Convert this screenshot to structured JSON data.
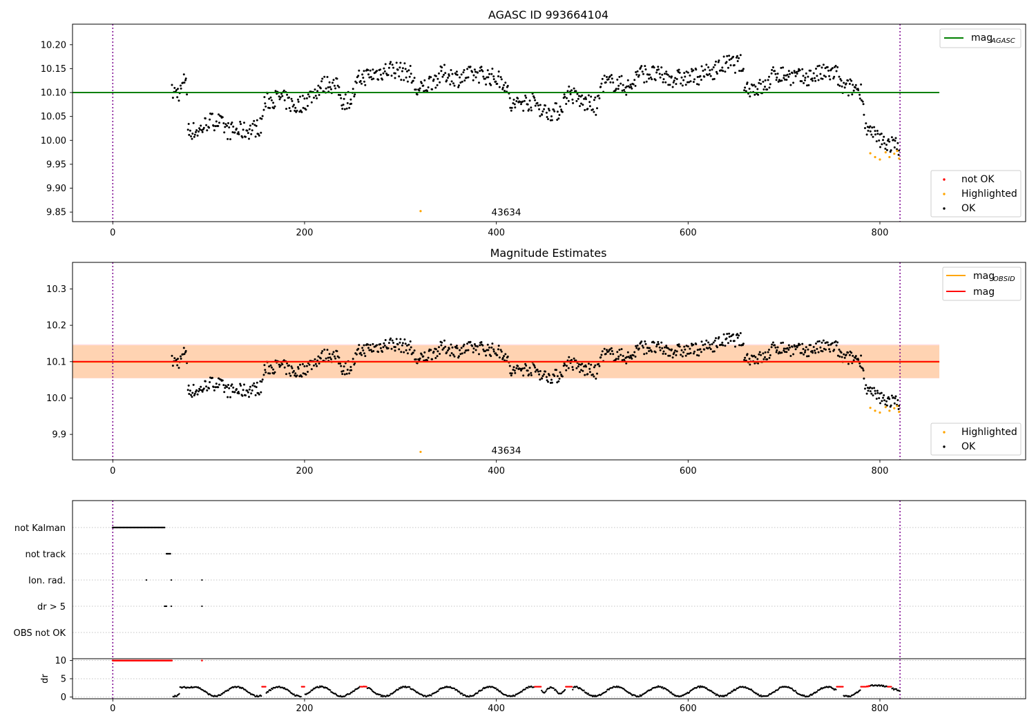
{
  "colors": {
    "ok": "#000000",
    "highlighted": "#ffa500",
    "not_ok": "#ff0000",
    "agasc_line": "#008000",
    "obsid_line": "#ffa500",
    "mag_line": "#ff0000",
    "obsid_band": "#ffa500",
    "mag_band": "#ff9aa8",
    "obs_vline": "#7b008f"
  },
  "chart_data": [
    {
      "type": "scatter",
      "title": "AGASC ID 993664104",
      "xlim": [
        -42,
        952
      ],
      "ylim": [
        9.83,
        10.243
      ],
      "xticks": [
        "0",
        "200",
        "400",
        "600",
        "800"
      ],
      "xtick_values": [
        0,
        200,
        400,
        600,
        800
      ],
      "yticks": [
        "9.85",
        "9.90",
        "9.95",
        "10.00",
        "10.05",
        "10.10",
        "10.15",
        "10.20"
      ],
      "ytick_values": [
        9.85,
        9.9,
        9.95,
        10.0,
        10.05,
        10.1,
        10.15,
        10.2
      ],
      "vlines": [
        0,
        821
      ],
      "hline": {
        "y": 10.1,
        "x_range": [
          -42,
          862
        ]
      },
      "annotation": {
        "text": "43634",
        "x": 411,
        "y": 9.84
      },
      "highlighted_points": [
        [
          321,
          9.852
        ],
        [
          790,
          9.973
        ],
        [
          795,
          9.965
        ],
        [
          800,
          9.96
        ],
        [
          806,
          9.975
        ],
        [
          810,
          9.965
        ],
        [
          815,
          9.972
        ],
        [
          818,
          9.978
        ],
        [
          820,
          9.962
        ]
      ],
      "legend": {
        "position": "top-right",
        "line_label": "mag",
        "line_label_sub": "AGASC",
        "points": [
          "not OK",
          "Highlighted",
          "OK"
        ]
      }
    },
    {
      "type": "scatter",
      "title": "Magnitude Estimates",
      "xlim": [
        -42,
        952
      ],
      "ylim": [
        9.83,
        10.373
      ],
      "xticks": [
        "0",
        "200",
        "400",
        "600",
        "800"
      ],
      "xtick_values": [
        0,
        200,
        400,
        600,
        800
      ],
      "yticks": [
        "9.9",
        "10.0",
        "10.1",
        "10.2",
        "10.3"
      ],
      "ytick_values": [
        9.9,
        10.0,
        10.1,
        10.2,
        10.3
      ],
      "vlines": [
        0,
        821
      ],
      "obsid_line": {
        "y": 10.1,
        "band": [
          10.055,
          10.145
        ],
        "x_range": [
          -42,
          862
        ]
      },
      "mag_line": {
        "y": 10.1,
        "band": [
          10.054,
          10.148
        ],
        "x_range": [
          -42,
          862
        ]
      },
      "annotation": {
        "text": "43634",
        "x": 411,
        "y": 9.84
      },
      "highlighted_points": [
        [
          321,
          9.852
        ],
        [
          790,
          9.973
        ],
        [
          795,
          9.965
        ],
        [
          800,
          9.96
        ],
        [
          806,
          9.975
        ],
        [
          810,
          9.965
        ],
        [
          815,
          9.972
        ],
        [
          818,
          9.978
        ],
        [
          820,
          9.962
        ]
      ],
      "legend": {
        "position": "top-right",
        "line1_label": "mag",
        "line1_sub": "OBSID",
        "line2_label": "mag",
        "points": [
          "Highlighted",
          "OK"
        ]
      }
    },
    {
      "type": "scatter",
      "xlim": [
        -42,
        952
      ],
      "flag_rows": [
        "not Kalman",
        "not track",
        "Ion. rad.",
        "dr > 5",
        "OBS not OK"
      ],
      "flag_points": {
        "not Kalman": {
          "x_range": [
            0,
            54
          ]
        },
        "not track": {
          "x": [
            56,
            57,
            58,
            59,
            60
          ]
        },
        "Ion. rad.": {
          "x": [
            35,
            61,
            93
          ]
        },
        "dr > 5": {
          "x": [
            54,
            55,
            56,
            61,
            93
          ]
        },
        "OBS not OK": {
          "x": []
        }
      },
      "dr_ylim": [
        -0.5,
        10.5
      ],
      "dr_yticks": [
        "0",
        "5",
        "10"
      ],
      "dr_ytick_values": [
        0,
        5,
        10
      ],
      "dr_ylabel": "dr",
      "dr_saturated": {
        "x_range": [
          0,
          62
        ],
        "extra_x": [
          93
        ],
        "y": 10
      },
      "xticks": [
        "0",
        "200",
        "400",
        "600",
        "800"
      ],
      "xtick_values": [
        0,
        200,
        400,
        600,
        800
      ],
      "vlines": [
        0,
        821
      ]
    }
  ]
}
